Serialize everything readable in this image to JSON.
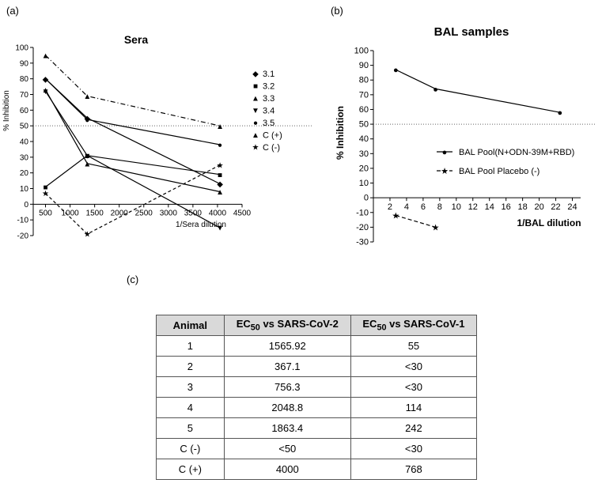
{
  "panels": {
    "a": "(a)",
    "b": "(b)",
    "c": "(c)"
  },
  "chart_data": [
    {
      "type": "line",
      "title": "Sera",
      "xlabel": "1/Sera dilution",
      "ylabel": "% Inhibition",
      "xlim": [
        250,
        4500
      ],
      "ylim": [
        -20,
        100
      ],
      "xticks": [
        500,
        1000,
        1500,
        2000,
        2500,
        3000,
        3500,
        4000,
        4500
      ],
      "yticks": [
        -20,
        -10,
        0,
        10,
        20,
        30,
        40,
        50,
        60,
        70,
        80,
        90,
        100
      ],
      "threshold": 50,
      "series": [
        {
          "name": "3.1",
          "marker": "◆",
          "dash": "",
          "x": [
            500,
            1350,
            4050
          ],
          "y": [
            80,
            55,
            13
          ]
        },
        {
          "name": "3.2",
          "marker": "■",
          "dash": "",
          "x": [
            500,
            1350,
            4050
          ],
          "y": [
            11,
            31,
            19
          ]
        },
        {
          "name": "3.3",
          "marker": "▲",
          "dash": "",
          "x": [
            500,
            1350,
            4050
          ],
          "y": [
            73,
            26,
            8
          ]
        },
        {
          "name": "3.4",
          "marker": "▼",
          "dash": "",
          "x": [
            500,
            1350,
            4050
          ],
          "y": [
            72,
            31,
            -15
          ]
        },
        {
          "name": "3.5",
          "marker": "●",
          "dash": "",
          "x": [
            500,
            1350,
            4050
          ],
          "y": [
            80,
            54,
            38
          ]
        },
        {
          "name": "C (+)",
          "marker": "▲",
          "dash": "6,3,1,3",
          "x": [
            500,
            1350,
            4050
          ],
          "y": [
            95,
            69,
            50
          ]
        },
        {
          "name": "C (-)",
          "marker": "★",
          "dash": "4,3",
          "x": [
            500,
            1350,
            4050
          ],
          "y": [
            7,
            -19,
            25
          ]
        }
      ]
    },
    {
      "type": "line",
      "title": "BAL samples",
      "xlabel": "1/BAL dilution",
      "ylabel": "% Inhibition",
      "xlim": [
        0,
        25
      ],
      "ylim": [
        -30,
        100
      ],
      "xticks": [
        2,
        4,
        6,
        8,
        10,
        12,
        14,
        16,
        18,
        20,
        22,
        24
      ],
      "yticks": [
        -30,
        -20,
        -10,
        0,
        10,
        20,
        30,
        40,
        50,
        60,
        70,
        80,
        90,
        100
      ],
      "threshold": 50,
      "series": [
        {
          "name": "BAL Pool(N+ODN-39M+RBD)",
          "marker": "●",
          "dash": "",
          "x": [
            2.7,
            7.5,
            22.5
          ],
          "y": [
            87,
            74,
            58
          ]
        },
        {
          "name": "BAL Pool Placebo (-)",
          "marker": "★",
          "dash": "5,3",
          "x": [
            2.7,
            7.5
          ],
          "y": [
            -12,
            -20
          ]
        }
      ]
    }
  ],
  "table": {
    "headers": [
      {
        "main": "Animal",
        "sub": "",
        "rest": ""
      },
      {
        "main": "EC",
        "sub": "50",
        "rest": " vs SARS-CoV-2"
      },
      {
        "main": "EC",
        "sub": "50",
        "rest": " vs SARS-CoV-1"
      }
    ],
    "rows": [
      [
        "1",
        "1565.92",
        "55"
      ],
      [
        "2",
        "367.1",
        "<30"
      ],
      [
        "3",
        "756.3",
        "<30"
      ],
      [
        "4",
        "2048.8",
        "114"
      ],
      [
        "5",
        "1863.4",
        "242"
      ],
      [
        "C (-)",
        "<50",
        "<30"
      ],
      [
        "C (+)",
        "4000",
        "768"
      ]
    ]
  }
}
